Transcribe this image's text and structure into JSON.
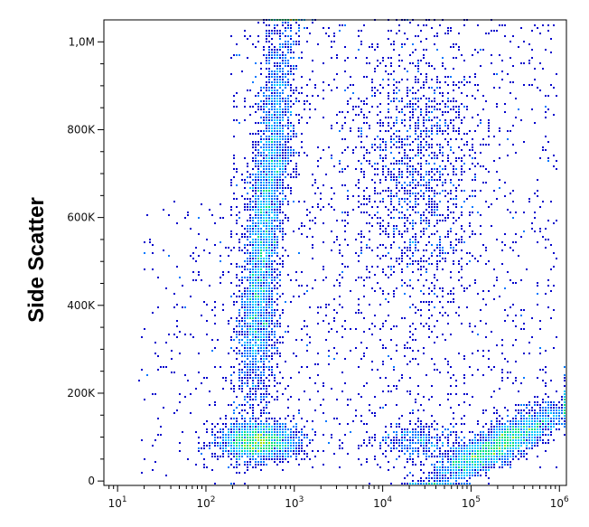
{
  "chart_data": {
    "type": "scatter",
    "subtype": "density-dot-plot",
    "title": "",
    "xlabel": "",
    "ylabel": "Side Scatter",
    "x_scale": "log",
    "xlim": [
      7,
      1200000
    ],
    "ylim": [
      -10000,
      1050000
    ],
    "x_ticks": [
      {
        "value": 10,
        "base": "10",
        "exp": "1"
      },
      {
        "value": 100,
        "base": "10",
        "exp": "2"
      },
      {
        "value": 1000,
        "base": "10",
        "exp": "3"
      },
      {
        "value": 10000,
        "base": "10",
        "exp": "4"
      },
      {
        "value": 100000,
        "base": "10",
        "exp": "5"
      },
      {
        "value": 1000000,
        "base": "10",
        "exp": "6"
      }
    ],
    "y_ticks": [
      {
        "value": 0,
        "label": "0"
      },
      {
        "value": 200000,
        "label": "200K"
      },
      {
        "value": 400000,
        "label": "400K"
      },
      {
        "value": 600000,
        "label": "600K"
      },
      {
        "value": 800000,
        "label": "800K"
      },
      {
        "value": 1000000,
        "label": "1,0M"
      }
    ],
    "grid": false,
    "legend": "none",
    "color_scale": [
      "#0000cc",
      "#0077ff",
      "#00c8ff",
      "#00e07a",
      "#9be000",
      "#ffd000",
      "#ff7a00",
      "#e00000"
    ],
    "populations": [
      {
        "x_center": 500,
        "y_center": 650000,
        "n": 3200
      },
      {
        "x_center": 420,
        "y_center": 360000,
        "n": 700
      },
      {
        "x_center": 400,
        "y_center": 90000,
        "n": 1800
      },
      {
        "x_center": 25000,
        "y_center": 700000,
        "n": 1300
      },
      {
        "x_center": 200000,
        "y_center": 80000,
        "n": 2600
      },
      {
        "x_center": 25000,
        "y_center": 90000,
        "n": 350
      }
    ]
  }
}
